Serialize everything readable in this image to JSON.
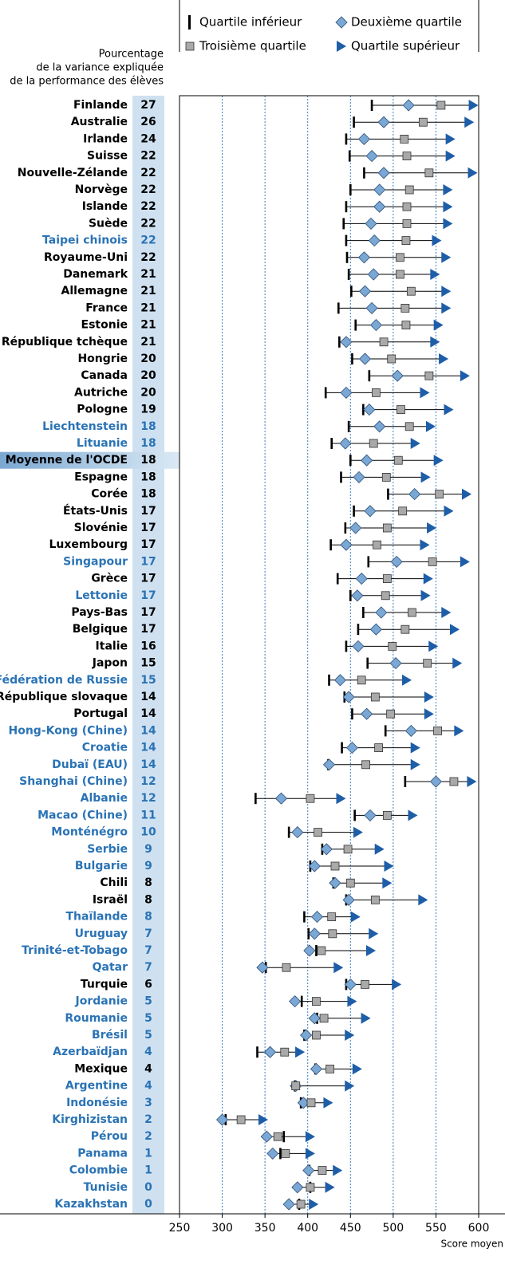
{
  "chart_data": {
    "type": "quartile-dot",
    "column_title": [
      "Pourcentage",
      "de la variance expliquée",
      "de la performance des élèves"
    ],
    "xlabel": "Score moyen",
    "xlim": [
      250,
      600
    ],
    "xticks": [
      250,
      300,
      350,
      400,
      450,
      500,
      550,
      600
    ],
    "grid": true,
    "categories": [
      "Finlande",
      "Australie",
      "Irlande",
      "Suisse",
      "Nouvelle-Zélande",
      "Norvège",
      "Islande",
      "Suède",
      "Taipei chinois",
      "Royaume-Uni",
      "Danemark",
      "Allemagne",
      "France",
      "Estonie",
      "République tchèque",
      "Hongrie",
      "Canada",
      "Autriche",
      "Pologne",
      "Liechtenstein",
      "Lituanie",
      "Moyenne de l'OCDE",
      "Espagne",
      "Corée",
      "États-Unis",
      "Slovénie",
      "Luxembourg",
      "Singapour",
      "Grèce",
      "Lettonie",
      "Pays-Bas",
      "Belgique",
      "Italie",
      "Japon",
      "Fédération de Russie",
      "République slovaque",
      "Portugal",
      "Hong-Kong (Chine)",
      "Croatie",
      "Dubaï (EAU)",
      "Shanghai (Chine)",
      "Albanie",
      "Macao (Chine)",
      "Monténégro",
      "Serbie",
      "Bulgarie",
      "Chili",
      "Israël",
      "Thaïlande",
      "Uruguay",
      "Trinité-et-Tobago",
      "Qatar",
      "Turquie",
      "Jordanie",
      "Roumanie",
      "Brésil",
      "Azerbaïdjan",
      "Mexique",
      "Argentine",
      "Indonésie",
      "Kirghizistan",
      "Pérou",
      "Panama",
      "Colombie",
      "Tunisie",
      "Kazakhstan"
    ],
    "label_colors": [
      "#000",
      "#000",
      "#000",
      "#000",
      "#000",
      "#000",
      "#000",
      "#000",
      "#2a73b5",
      "#000",
      "#000",
      "#000",
      "#000",
      "#000",
      "#000",
      "#000",
      "#000",
      "#000",
      "#000",
      "#2a73b5",
      "#2a73b5",
      "#000",
      "#000",
      "#000",
      "#000",
      "#000",
      "#000",
      "#2a73b5",
      "#000",
      "#2a73b5",
      "#000",
      "#000",
      "#000",
      "#000",
      "#2a73b5",
      "#000",
      "#000",
      "#2a73b5",
      "#2a73b5",
      "#2a73b5",
      "#2a73b5",
      "#2a73b5",
      "#2a73b5",
      "#2a73b5",
      "#2a73b5",
      "#2a73b5",
      "#000",
      "#000",
      "#2a73b5",
      "#2a73b5",
      "#2a73b5",
      "#2a73b5",
      "#000",
      "#2a73b5",
      "#2a73b5",
      "#2a73b5",
      "#2a73b5",
      "#000",
      "#2a73b5",
      "#2a73b5",
      "#2a73b5",
      "#2a73b5",
      "#2a73b5",
      "#2a73b5",
      "#2a73b5",
      "#2a73b5"
    ],
    "highlight": "Moyenne de l'OCDE",
    "percentages": [
      27,
      26,
      24,
      22,
      22,
      22,
      22,
      22,
      22,
      22,
      21,
      21,
      21,
      21,
      21,
      20,
      20,
      20,
      19,
      18,
      18,
      18,
      18,
      18,
      17,
      17,
      17,
      17,
      17,
      17,
      17,
      17,
      16,
      15,
      15,
      14,
      14,
      14,
      14,
      14,
      12,
      12,
      11,
      10,
      9,
      9,
      8,
      8,
      8,
      7,
      7,
      7,
      6,
      5,
      5,
      5,
      4,
      4,
      4,
      3,
      2,
      2,
      1,
      1,
      0,
      0
    ],
    "series": [
      {
        "name": "Quartile inférieur",
        "marker": "bar",
        "color": "#000000",
        "values": [
          475,
          454,
          445,
          449,
          466,
          450,
          445,
          442,
          445,
          446,
          448,
          451,
          436,
          456,
          437,
          452,
          472,
          421,
          465,
          448,
          428,
          450,
          439,
          494,
          454,
          444,
          427,
          471,
          435,
          450,
          465,
          459,
          445,
          470,
          425,
          443,
          452,
          491,
          440,
          424,
          514,
          339,
          455,
          378,
          417,
          403,
          430,
          445,
          396,
          401,
          410,
          351,
          445,
          393,
          411,
          396,
          341,
          409,
          385,
          392,
          304,
          372,
          368,
          402,
          403,
          390
        ]
      },
      {
        "name": "Deuxième quartile",
        "marker": "diamond",
        "color": "#7aa7d4",
        "values": [
          518,
          489,
          466,
          475,
          489,
          484,
          484,
          474,
          478,
          466,
          477,
          467,
          475,
          480,
          445,
          467,
          505,
          445,
          472,
          484,
          444,
          469,
          460,
          525,
          473,
          456,
          445,
          504,
          463,
          458,
          486,
          480,
          459,
          503,
          438,
          448,
          469,
          521,
          452,
          425,
          550,
          369,
          473,
          388,
          422,
          408,
          432,
          448,
          411,
          408,
          402,
          347,
          450,
          385,
          408,
          398,
          356,
          410,
          386,
          395,
          300,
          352,
          359,
          401,
          388,
          378
        ]
      },
      {
        "name": "Troisième quartile",
        "marker": "square",
        "color": "#a9a9a9",
        "values": [
          556,
          535,
          513,
          516,
          542,
          519,
          516,
          516,
          515,
          508,
          508,
          521,
          514,
          515,
          489,
          498,
          542,
          480,
          509,
          519,
          477,
          506,
          492,
          554,
          511,
          493,
          481,
          546,
          493,
          491,
          522,
          514,
          499,
          540,
          463,
          479,
          497,
          552,
          483,
          468,
          571,
          403,
          493,
          412,
          447,
          432,
          450,
          479,
          428,
          429,
          416,
          375,
          467,
          410,
          419,
          410,
          373,
          426,
          386,
          404,
          322,
          365,
          374,
          417,
          403,
          392
        ]
      },
      {
        "name": "Quartile supérieur",
        "marker": "triangle",
        "color": "#1e5ea8",
        "values": [
          594,
          589,
          567,
          567,
          593,
          564,
          564,
          564,
          551,
          562,
          549,
          562,
          562,
          553,
          549,
          559,
          584,
          537,
          565,
          544,
          526,
          553,
          538,
          586,
          565,
          545,
          537,
          584,
          541,
          538,
          562,
          572,
          547,
          575,
          516,
          542,
          542,
          577,
          526,
          526,
          592,
          439,
          523,
          459,
          484,
          495,
          493,
          535,
          456,
          477,
          474,
          436,
          504,
          452,
          468,
          449,
          391,
          458,
          449,
          424,
          348,
          403,
          403,
          435,
          426,
          407
        ]
      }
    ]
  }
}
